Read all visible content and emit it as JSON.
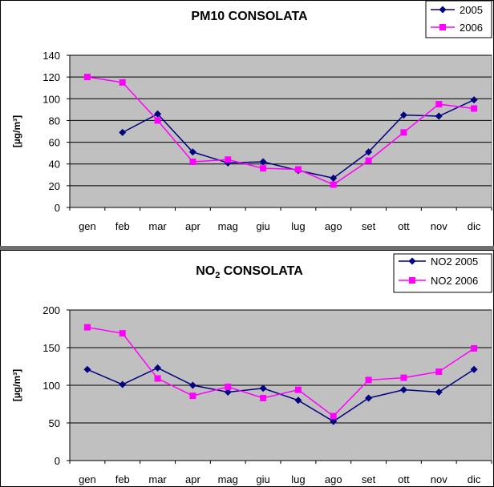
{
  "chart_data": [
    {
      "type": "line",
      "title": "PM10 CONSOLATA",
      "ylabel": "[µg/m³]",
      "ylim": [
        0,
        140
      ],
      "yticks": [
        0,
        20,
        40,
        60,
        80,
        100,
        120,
        140
      ],
      "categories": [
        "gen",
        "feb",
        "mar",
        "apr",
        "mag",
        "giu",
        "lug",
        "ago",
        "set",
        "ott",
        "nov",
        "dic"
      ],
      "legend_position": "top-right",
      "series": [
        {
          "name": "2005",
          "color": "#000080",
          "marker": "diamond",
          "values": [
            null,
            69,
            86,
            51,
            41,
            42,
            34,
            27,
            51,
            85,
            84,
            99
          ]
        },
        {
          "name": "2006",
          "color": "#ff00ff",
          "marker": "square",
          "values": [
            120,
            115,
            80,
            42,
            44,
            36,
            35,
            21,
            43,
            69,
            95,
            91
          ]
        }
      ]
    },
    {
      "type": "line",
      "title": "NO2 CONSOLATA",
      "title_parts": {
        "pre": "NO",
        "sub": "2",
        "post": " CONSOLATA"
      },
      "ylabel": "[µg/m³]",
      "ylim": [
        0,
        200
      ],
      "yticks": [
        0,
        50,
        100,
        150,
        200
      ],
      "categories": [
        "gen",
        "feb",
        "mar",
        "apr",
        "mag",
        "giu",
        "lug",
        "ago",
        "set",
        "ott",
        "nov",
        "dic"
      ],
      "legend_position": "top-right",
      "series": [
        {
          "name": "NO2 2005",
          "color": "#000080",
          "marker": "diamond",
          "values": [
            121,
            101,
            123,
            100,
            91,
            96,
            80,
            52,
            83,
            94,
            91,
            121
          ]
        },
        {
          "name": "NO2 2006",
          "color": "#ff00ff",
          "marker": "square",
          "values": [
            177,
            169,
            109,
            86,
            98,
            83,
            94,
            59,
            107,
            110,
            118,
            149
          ]
        }
      ]
    }
  ]
}
